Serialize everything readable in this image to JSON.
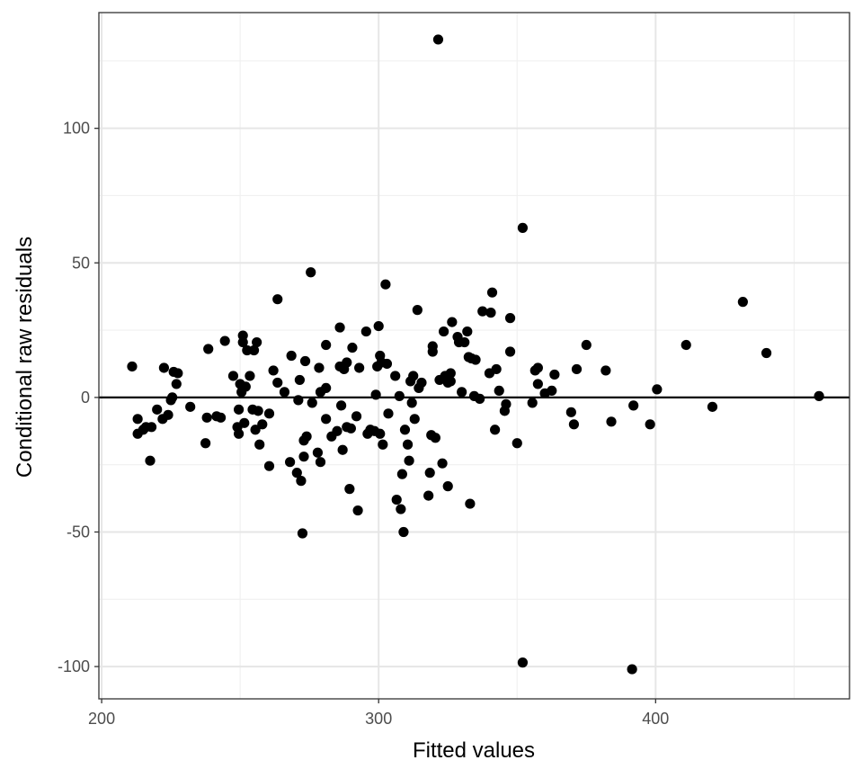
{
  "chart_data": {
    "type": "scatter",
    "title": "",
    "xlabel": "Fitted values",
    "ylabel": "Conditional raw residuals",
    "xlim": [
      199,
      470
    ],
    "ylim": [
      -112,
      143
    ],
    "x_ticks": [
      200,
      300,
      400
    ],
    "x_tick_labels": [
      "200",
      "300",
      "400"
    ],
    "y_ticks": [
      100,
      50,
      0,
      -50,
      -100
    ],
    "y_tick_labels": [
      "100",
      "50",
      "0",
      "-50",
      "-100"
    ],
    "reference_line_y": 0,
    "grid": true,
    "theme": "black-and-white",
    "point_color": "#000000",
    "points": [
      [
        211,
        11.5
      ],
      [
        213,
        -8
      ],
      [
        213,
        -13.5
      ],
      [
        215,
        -12
      ],
      [
        216,
        -11
      ],
      [
        217.5,
        -23.5
      ],
      [
        218,
        -11
      ],
      [
        220,
        -4.5
      ],
      [
        222,
        -8
      ],
      [
        222.5,
        11
      ],
      [
        224,
        -6.5
      ],
      [
        225,
        -1
      ],
      [
        225.5,
        0
      ],
      [
        226,
        9.5
      ],
      [
        227,
        5
      ],
      [
        227.5,
        9
      ],
      [
        232,
        -3.5
      ],
      [
        237.5,
        -17
      ],
      [
        238,
        -7.5
      ],
      [
        238.5,
        18
      ],
      [
        241.5,
        -7
      ],
      [
        243,
        -7.5
      ],
      [
        244.5,
        21
      ],
      [
        247.5,
        8
      ],
      [
        249,
        -11
      ],
      [
        249.5,
        -13.5
      ],
      [
        249.5,
        -4.5
      ],
      [
        250,
        5
      ],
      [
        250.5,
        2
      ],
      [
        251,
        20.5
      ],
      [
        251,
        23
      ],
      [
        251.5,
        -9.5
      ],
      [
        252,
        4
      ],
      [
        252.5,
        17.5
      ],
      [
        253.5,
        8
      ],
      [
        254.5,
        -4.5
      ],
      [
        255,
        17.5
      ],
      [
        255.5,
        -12
      ],
      [
        256,
        20.5
      ],
      [
        256.5,
        -5
      ],
      [
        257,
        -17.5
      ],
      [
        258,
        -10
      ],
      [
        260.5,
        -6
      ],
      [
        260.5,
        -25.5
      ],
      [
        262,
        10
      ],
      [
        263.5,
        5.5
      ],
      [
        263.5,
        36.5
      ],
      [
        266,
        2
      ],
      [
        268,
        -24
      ],
      [
        268.5,
        15.5
      ],
      [
        270.5,
        -28
      ],
      [
        271,
        -1
      ],
      [
        271.5,
        6.5
      ],
      [
        272,
        -31
      ],
      [
        272.5,
        -50.5
      ],
      [
        273,
        -16
      ],
      [
        273,
        -22
      ],
      [
        273.5,
        13.5
      ],
      [
        274,
        -14.5
      ],
      [
        275.5,
        46.5
      ],
      [
        276,
        -2
      ],
      [
        278,
        -20.5
      ],
      [
        278.5,
        11
      ],
      [
        279,
        -24
      ],
      [
        279,
        2
      ],
      [
        281,
        19.5
      ],
      [
        281,
        -8
      ],
      [
        281,
        3.5
      ],
      [
        283,
        -14.5
      ],
      [
        285,
        -12.5
      ],
      [
        286,
        26
      ],
      [
        286,
        11.5
      ],
      [
        286.5,
        -3
      ],
      [
        287,
        -19.5
      ],
      [
        287.5,
        10.5
      ],
      [
        288.5,
        -11
      ],
      [
        288.5,
        13
      ],
      [
        289.5,
        -34
      ],
      [
        290,
        -11.5
      ],
      [
        290.5,
        18.5
      ],
      [
        292,
        -7
      ],
      [
        292.5,
        -42
      ],
      [
        293,
        11
      ],
      [
        295.5,
        24.5
      ],
      [
        296,
        -13.5
      ],
      [
        297,
        -12
      ],
      [
        298.5,
        -12.5
      ],
      [
        299,
        1
      ],
      [
        299.5,
        11.5
      ],
      [
        300,
        26.5
      ],
      [
        300.5,
        -13.5
      ],
      [
        300.5,
        15.5
      ],
      [
        301,
        13
      ],
      [
        301.5,
        -17.5
      ],
      [
        302.5,
        42
      ],
      [
        303,
        12.5
      ],
      [
        303.5,
        -6
      ],
      [
        306,
        8
      ],
      [
        306.5,
        -38
      ],
      [
        307.5,
        0.5
      ],
      [
        308,
        -41.5
      ],
      [
        308.5,
        -28.5
      ],
      [
        309,
        -50
      ],
      [
        309.5,
        -12
      ],
      [
        310.5,
        -17.5
      ],
      [
        311,
        -23.5
      ],
      [
        311.5,
        6
      ],
      [
        312,
        -2
      ],
      [
        312.5,
        8
      ],
      [
        313,
        -8
      ],
      [
        314,
        32.5
      ],
      [
        314.5,
        3.5
      ],
      [
        315.5,
        5.5
      ],
      [
        318,
        -36.5
      ],
      [
        318.5,
        -28
      ],
      [
        319,
        -14
      ],
      [
        319.5,
        19
      ],
      [
        319.5,
        17
      ],
      [
        320.5,
        -15
      ],
      [
        321.5,
        133
      ],
      [
        322,
        6.5
      ],
      [
        323,
        -24.5
      ],
      [
        323.5,
        24.5
      ],
      [
        324,
        8
      ],
      [
        325,
        -33
      ],
      [
        325,
        5.5
      ],
      [
        326,
        9
      ],
      [
        326,
        6
      ],
      [
        326.5,
        28
      ],
      [
        328.5,
        22.5
      ],
      [
        329,
        20.5
      ],
      [
        330,
        2
      ],
      [
        331,
        20.5
      ],
      [
        332,
        24.5
      ],
      [
        332.5,
        15
      ],
      [
        333,
        -39.5
      ],
      [
        333.5,
        14.5
      ],
      [
        334.5,
        0.5
      ],
      [
        335,
        14
      ],
      [
        336.5,
        -0.5
      ],
      [
        337.5,
        32
      ],
      [
        340,
        9
      ],
      [
        340.5,
        31.5
      ],
      [
        341,
        39
      ],
      [
        342,
        -12
      ],
      [
        342.5,
        10.5
      ],
      [
        343.5,
        2.5
      ],
      [
        345.5,
        -5
      ],
      [
        346,
        -2.5
      ],
      [
        347.5,
        29.5
      ],
      [
        347.5,
        17
      ],
      [
        350,
        -17
      ],
      [
        352,
        63
      ],
      [
        352,
        -98.5
      ],
      [
        355.5,
        -2
      ],
      [
        356.5,
        10
      ],
      [
        357.5,
        11
      ],
      [
        357.5,
        5
      ],
      [
        360,
        1.5
      ],
      [
        362.5,
        2.5
      ],
      [
        363.5,
        8.5
      ],
      [
        369.5,
        -5.5
      ],
      [
        370.5,
        -10
      ],
      [
        371.5,
        10.5
      ],
      [
        375,
        19.5
      ],
      [
        382,
        10
      ],
      [
        384,
        -9
      ],
      [
        391.5,
        -101
      ],
      [
        392,
        -3
      ],
      [
        398,
        -10
      ],
      [
        400.5,
        3
      ],
      [
        411,
        19.5
      ],
      [
        420.5,
        -3.5
      ],
      [
        431.5,
        35.5
      ],
      [
        440,
        16.5
      ],
      [
        459,
        0.5
      ]
    ]
  }
}
